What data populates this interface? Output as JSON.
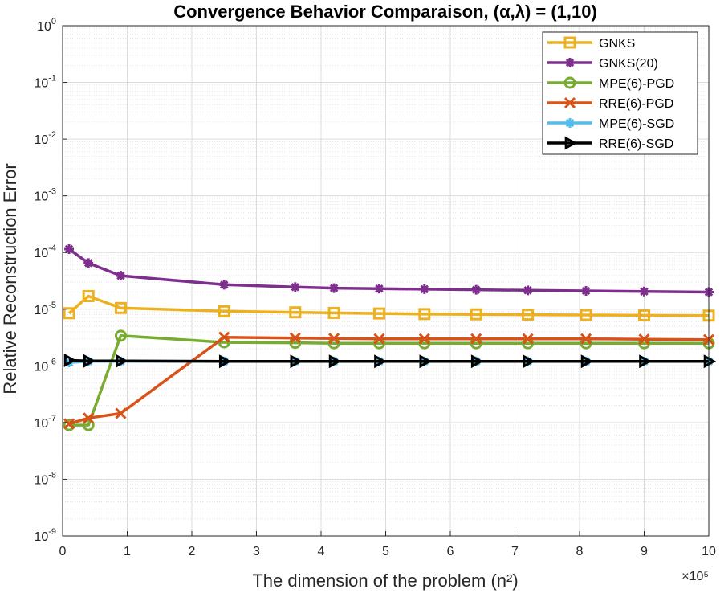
{
  "chart_data": {
    "type": "line",
    "title": "Convergence Behavior Comparaison, (α,λ) = (1,10)",
    "xlabel": "The dimension of the problem (n²)",
    "ylabel": "Relative Reconstruction Error",
    "x_multiplier_label": "×10⁵",
    "xlim": [
      0,
      10
    ],
    "ylim_log10": [
      -9,
      0
    ],
    "xscale": "linear",
    "yscale": "log",
    "grid": true,
    "minor_grid": true,
    "legend_position": "top-right",
    "x_ticks": [
      "0",
      "1",
      "2",
      "3",
      "4",
      "5",
      "6",
      "7",
      "8",
      "9",
      "10"
    ],
    "y_ticks": [
      {
        "base": "10",
        "exp": "0"
      },
      {
        "base": "10",
        "exp": "-1"
      },
      {
        "base": "10",
        "exp": "-2"
      },
      {
        "base": "10",
        "exp": "-3"
      },
      {
        "base": "10",
        "exp": "-4"
      },
      {
        "base": "10",
        "exp": "-5"
      },
      {
        "base": "10",
        "exp": "-6"
      },
      {
        "base": "10",
        "exp": "-7"
      },
      {
        "base": "10",
        "exp": "-8"
      },
      {
        "base": "10",
        "exp": "-9"
      }
    ],
    "x": [
      0.1,
      0.4,
      0.9,
      2.5,
      3.6,
      4.2,
      4.9,
      5.6,
      6.4,
      7.2,
      8.1,
      9.0,
      10.0
    ],
    "series": [
      {
        "name": "GNKS",
        "color": "#EDB120",
        "marker": "square",
        "values": [
          8.5e-06,
          1.7e-05,
          1.05e-05,
          9.2e-06,
          8.8e-06,
          8.6e-06,
          8.4e-06,
          8.2e-06,
          8.1e-06,
          8e-06,
          7.9e-06,
          7.8e-06,
          7.7e-06
        ]
      },
      {
        "name": "GNKS(20)",
        "color": "#7E2F8E",
        "marker": "star",
        "values": [
          0.000115,
          6.5e-05,
          3.9e-05,
          2.7e-05,
          2.45e-05,
          2.35e-05,
          2.3e-05,
          2.25e-05,
          2.2e-05,
          2.15e-05,
          2.1e-05,
          2.05e-05,
          2e-05
        ]
      },
      {
        "name": "MPE(6)-PGD",
        "color": "#77AC30",
        "marker": "circle",
        "values": [
          9e-08,
          9e-08,
          3.4e-06,
          2.6e-06,
          2.55e-06,
          2.5e-06,
          2.5e-06,
          2.5e-06,
          2.5e-06,
          2.5e-06,
          2.5e-06,
          2.5e-06,
          2.5e-06
        ]
      },
      {
        "name": "RRE(6)-PGD",
        "color": "#D95319",
        "marker": "x",
        "values": [
          9.5e-08,
          1.2e-07,
          1.45e-07,
          3.2e-06,
          3.1e-06,
          3.05e-06,
          3e-06,
          3e-06,
          3e-06,
          3e-06,
          3e-06,
          2.95e-06,
          2.9e-06
        ]
      },
      {
        "name": "MPE(6)-SGD",
        "color": "#4DBEEE",
        "marker": "asterisk",
        "values": [
          1.15e-06,
          1.2e-06,
          1.2e-06,
          1.2e-06,
          1.2e-06,
          1.2e-06,
          1.2e-06,
          1.2e-06,
          1.2e-06,
          1.2e-06,
          1.2e-06,
          1.2e-06,
          1.2e-06
        ]
      },
      {
        "name": "RRE(6)-SGD",
        "color": "#000000",
        "marker": "triangle-right",
        "values": [
          1.25e-06,
          1.22e-06,
          1.22e-06,
          1.2e-06,
          1.2e-06,
          1.2e-06,
          1.2e-06,
          1.2e-06,
          1.2e-06,
          1.2e-06,
          1.2e-06,
          1.2e-06,
          1.2e-06
        ]
      }
    ]
  }
}
